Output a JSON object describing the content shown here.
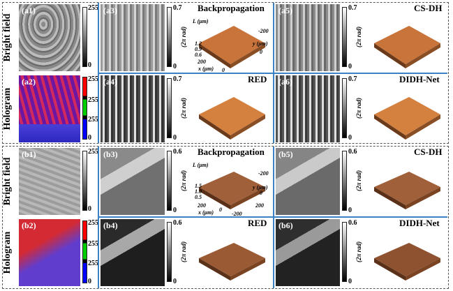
{
  "row_labels": {
    "bright_field": "Bright field",
    "hologram": "Hologram"
  },
  "sections": [
    {
      "id": "a",
      "bright_panel": {
        "label": "(a1)",
        "cbar_max": "255",
        "cbar_min": "0"
      },
      "hologram_panel": {
        "label": "(a2)",
        "cbar_ticks": [
          "255",
          "255",
          "255",
          "0"
        ]
      },
      "recon_panels": [
        {
          "label": "(a3)",
          "method": "Backpropagation",
          "cbar_max": "0.7",
          "cbar_min": "0"
        },
        {
          "label": "(a5)",
          "method": "CS-DH",
          "cbar_max": "0.7",
          "cbar_min": "0"
        },
        {
          "label": "(a4)",
          "method": "RED",
          "cbar_max": "0.7",
          "cbar_min": "0"
        },
        {
          "label": "(a6)",
          "method": "DIDH-Net",
          "cbar_max": "0.7",
          "cbar_min": "0"
        }
      ],
      "z_label": "(2π rad)",
      "l_axis": "L (μm)",
      "l_ticks": [
        "1.2",
        "0.9",
        "0.6"
      ],
      "x_axis": "x (μm)",
      "y_axis": "y (μm)",
      "x_ticks": [
        "200",
        "0"
      ],
      "y_ticks": [
        "-200",
        "0"
      ]
    },
    {
      "id": "b",
      "bright_panel": {
        "label": "(b1)",
        "cbar_max": "255",
        "cbar_min": "0"
      },
      "hologram_panel": {
        "label": "(b2)",
        "cbar_ticks": [
          "255",
          "255",
          "255",
          "0"
        ]
      },
      "recon_panels": [
        {
          "label": "(b3)",
          "method": "Backpropagation",
          "cbar_max": "0.6",
          "cbar_min": "0"
        },
        {
          "label": "(b5)",
          "method": "CS-DH",
          "cbar_max": "0.6",
          "cbar_min": "0"
        },
        {
          "label": "(b4)",
          "method": "RED",
          "cbar_max": "0.6",
          "cbar_min": "0"
        },
        {
          "label": "(b6)",
          "method": "DIDH-Net",
          "cbar_max": "0.6",
          "cbar_min": "0"
        }
      ],
      "z_label": "(2π rad)",
      "l_axis": "L (μm)",
      "l_ticks": [
        "1.5",
        "1.0",
        "0.5"
      ],
      "x_axis": "x (μm)",
      "y_axis": "y (μm)",
      "x_ticks": [
        "200",
        "0",
        "-200"
      ],
      "y_ticks": [
        "-200",
        "0",
        "200"
      ]
    }
  ],
  "colors": {
    "separator": "#3a82c4",
    "dashed_border": "#555555",
    "surface": "#c8743a"
  }
}
